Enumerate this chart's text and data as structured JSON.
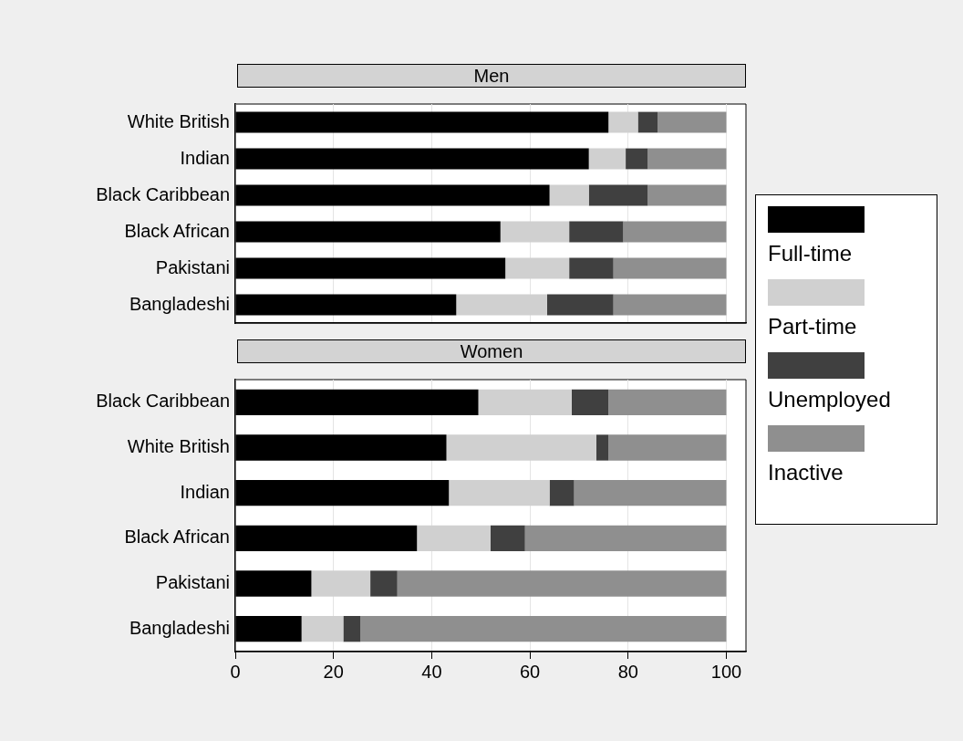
{
  "chart_data": [
    {
      "type": "bar",
      "title": "Men",
      "orientation": "horizontal",
      "stacked": true,
      "grid": "x",
      "legend": "right",
      "tick_labels": "y",
      "categories": [
        "White British",
        "Indian",
        "Black Caribbean",
        "Black African",
        "Pakistani",
        "Bangladeshi"
      ],
      "xlim": [
        0,
        104
      ],
      "xticks": [
        0,
        20,
        40,
        60,
        80,
        100
      ],
      "series": [
        {
          "name": "Full-time",
          "color": "#000000",
          "values": [
            76,
            72,
            64,
            54,
            55,
            45
          ]
        },
        {
          "name": "Part-time",
          "color": "#d0d0d0",
          "values": [
            6,
            7.5,
            8,
            14,
            13,
            18.5
          ]
        },
        {
          "name": "Unemployed",
          "color": "#404040",
          "values": [
            4,
            4.5,
            12,
            11,
            9,
            13.5
          ]
        },
        {
          "name": "Inactive",
          "color": "#8f8f8f",
          "values": [
            14,
            16,
            16,
            21,
            23,
            23
          ]
        }
      ]
    },
    {
      "type": "bar",
      "title": "Women",
      "orientation": "horizontal",
      "stacked": true,
      "grid": "x",
      "categories": [
        "Black Caribbean",
        "White British",
        "Indian",
        "Black African",
        "Pakistani",
        "Bangladeshi"
      ],
      "xlim": [
        0,
        104
      ],
      "xticks": [
        0,
        20,
        40,
        60,
        80,
        100
      ],
      "series": [
        {
          "color": "#000000",
          "values": [
            49.5,
            43,
            43.5,
            37,
            15.5,
            13.5
          ]
        },
        {
          "color": "#d0d0d0",
          "values": [
            19,
            30.5,
            20.5,
            15,
            12,
            8.5
          ]
        },
        {
          "color": "#404040",
          "values": [
            7.5,
            2.5,
            5,
            7,
            5.5,
            3.5
          ]
        },
        {
          "color": "#8f8f8f",
          "values": [
            24,
            24,
            31,
            41,
            67,
            74.5
          ]
        }
      ]
    }
  ]
}
